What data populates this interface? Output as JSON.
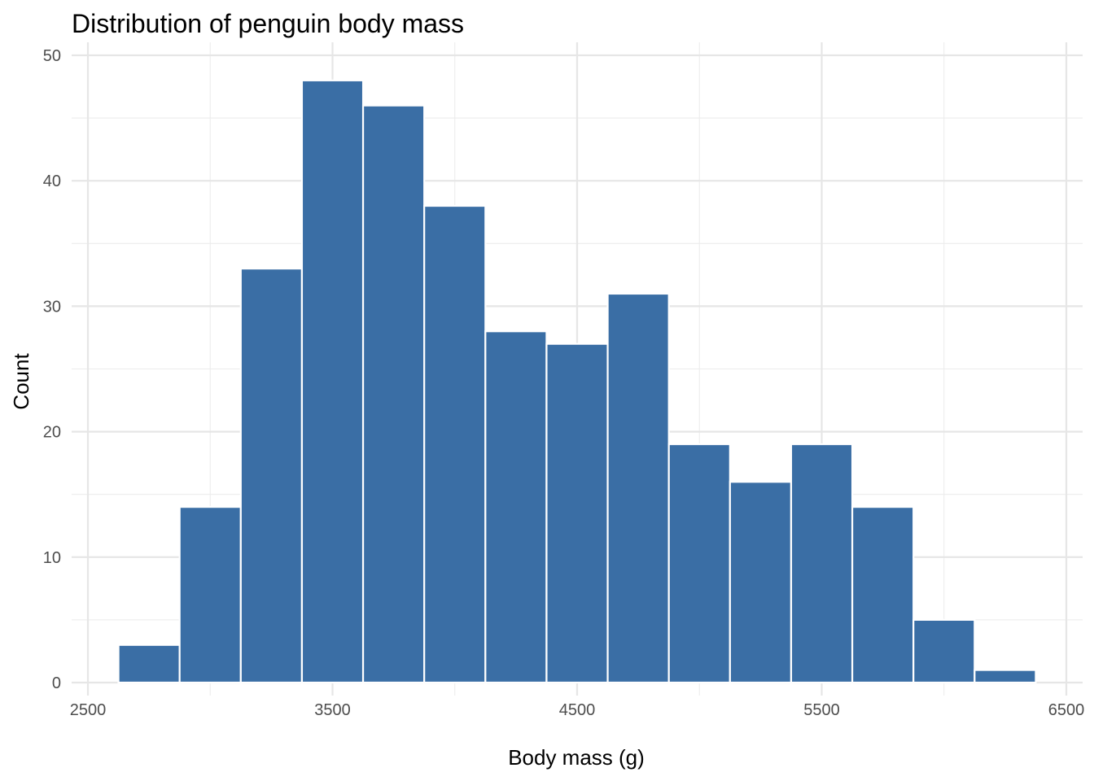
{
  "chart_data": {
    "type": "bar",
    "title": "Distribution of penguin body mass",
    "xlabel": "Body mass (g)",
    "ylabel": "Count",
    "xlim": [
      2500,
      6500
    ],
    "ylim": [
      0,
      50
    ],
    "x_ticks": [
      2500,
      3500,
      4500,
      5500,
      6500
    ],
    "y_ticks": [
      0,
      10,
      20,
      30,
      40,
      50
    ],
    "grid": true,
    "bar_color": "#3a6ea5",
    "bar_edge_color": "#ffffff",
    "bins": [
      {
        "x_start": 2625,
        "x_end": 2875,
        "count": 3
      },
      {
        "x_start": 2875,
        "x_end": 3125,
        "count": 14
      },
      {
        "x_start": 3125,
        "x_end": 3375,
        "count": 33
      },
      {
        "x_start": 3375,
        "x_end": 3625,
        "count": 48
      },
      {
        "x_start": 3625,
        "x_end": 3875,
        "count": 46
      },
      {
        "x_start": 3875,
        "x_end": 4125,
        "count": 38
      },
      {
        "x_start": 4125,
        "x_end": 4375,
        "count": 28
      },
      {
        "x_start": 4375,
        "x_end": 4625,
        "count": 27
      },
      {
        "x_start": 4625,
        "x_end": 4875,
        "count": 31
      },
      {
        "x_start": 4875,
        "x_end": 5125,
        "count": 19
      },
      {
        "x_start": 5125,
        "x_end": 5375,
        "count": 16
      },
      {
        "x_start": 5375,
        "x_end": 5625,
        "count": 19
      },
      {
        "x_start": 5625,
        "x_end": 5875,
        "count": 14
      },
      {
        "x_start": 5875,
        "x_end": 6125,
        "count": 5
      },
      {
        "x_start": 6125,
        "x_end": 6375,
        "count": 1
      }
    ]
  }
}
